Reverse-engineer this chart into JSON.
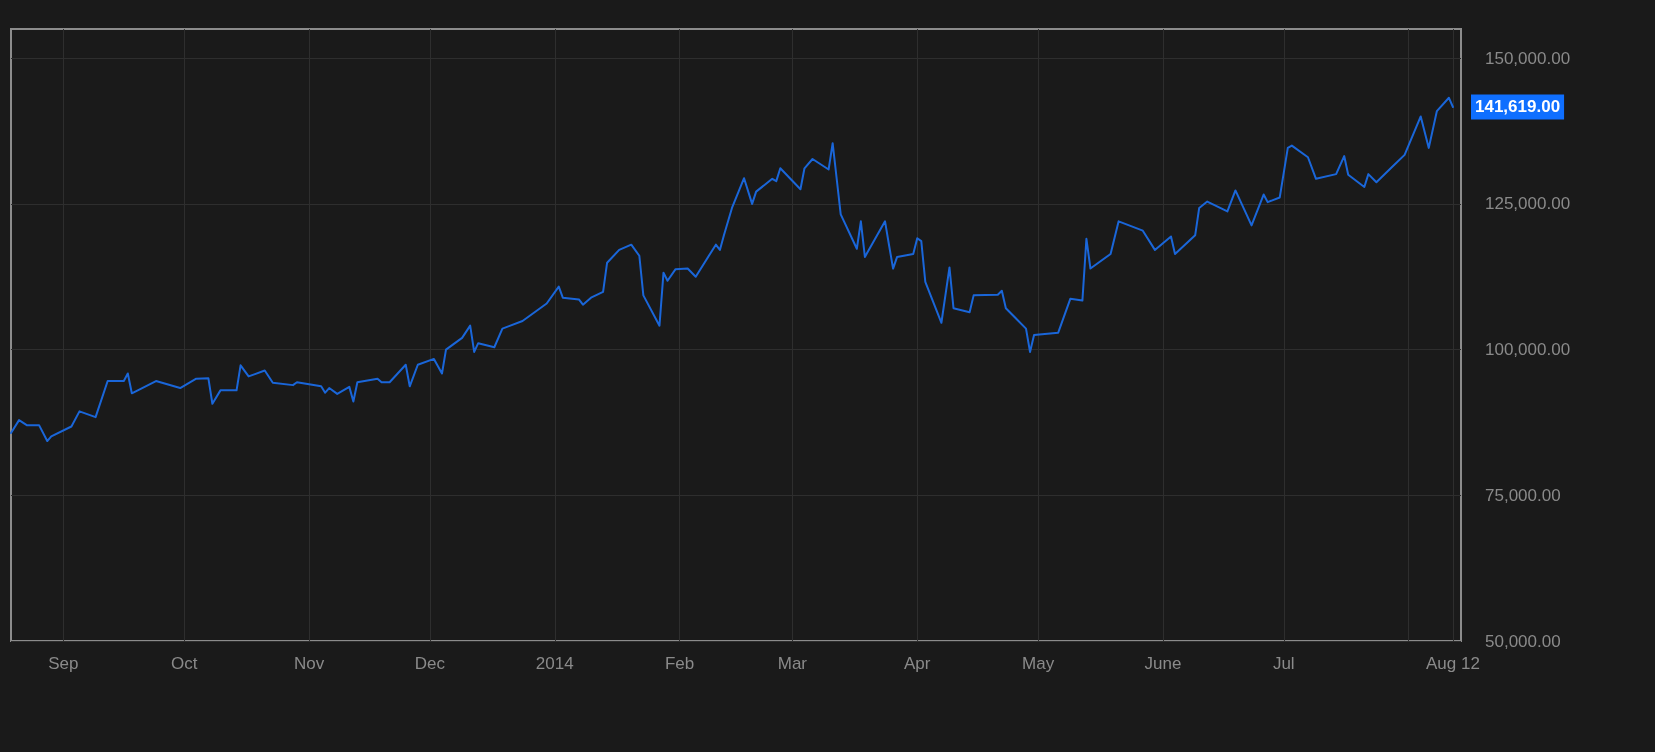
{
  "chart_data": {
    "type": "line",
    "x": [
      "2013-08-19",
      "2013-08-21",
      "2013-08-23",
      "2013-08-26",
      "2013-08-28",
      "2013-08-29",
      "2013-09-03",
      "2013-09-05",
      "2013-09-09",
      "2013-09-12",
      "2013-09-16",
      "2013-09-17",
      "2013-09-18",
      "2013-09-24",
      "2013-09-30",
      "2013-10-04",
      "2013-10-07",
      "2013-10-08",
      "2013-10-10",
      "2013-10-14",
      "2013-10-15",
      "2013-10-17",
      "2013-10-21",
      "2013-10-23",
      "2013-10-28",
      "2013-10-29",
      "2013-11-04",
      "2013-11-05",
      "2013-11-06",
      "2013-11-08",
      "2013-11-11",
      "2013-11-12",
      "2013-11-13",
      "2013-11-18",
      "2013-11-19",
      "2013-11-21",
      "2013-11-25",
      "2013-11-26",
      "2013-11-28",
      "2013-12-02",
      "2013-12-04",
      "2013-12-05",
      "2013-12-09",
      "2013-12-11",
      "2013-12-12",
      "2013-12-13",
      "2013-12-17",
      "2013-12-19",
      "2013-12-24",
      "2013-12-30",
      "2014-01-02",
      "2014-01-03",
      "2014-01-07",
      "2014-01-08",
      "2014-01-10",
      "2014-01-13",
      "2014-01-14",
      "2014-01-17",
      "2014-01-20",
      "2014-01-22",
      "2014-01-23",
      "2014-01-27",
      "2014-01-28",
      "2014-01-29",
      "2014-01-31",
      "2014-02-03",
      "2014-02-05",
      "2014-02-10",
      "2014-02-11",
      "2014-02-12",
      "2014-02-14",
      "2014-02-17",
      "2014-02-19",
      "2014-02-20",
      "2014-02-24",
      "2014-02-25",
      "2014-02-26",
      "2014-03-03",
      "2014-03-04",
      "2014-03-06",
      "2014-03-10",
      "2014-03-11",
      "2014-03-13",
      "2014-03-17",
      "2014-03-18",
      "2014-03-19",
      "2014-03-24",
      "2014-03-25",
      "2014-03-26",
      "2014-03-27",
      "2014-03-31",
      "2014-04-01",
      "2014-04-02",
      "2014-04-03",
      "2014-04-07",
      "2014-04-09",
      "2014-04-10",
      "2014-04-14",
      "2014-04-15",
      "2014-04-21",
      "2014-04-22",
      "2014-04-23",
      "2014-04-28",
      "2014-04-29",
      "2014-04-30",
      "2014-05-06",
      "2014-05-09",
      "2014-05-12",
      "2014-05-13",
      "2014-05-14",
      "2014-05-19",
      "2014-05-21",
      "2014-05-27",
      "2014-05-30",
      "2014-06-03",
      "2014-06-04",
      "2014-06-09",
      "2014-06-10",
      "2014-06-12",
      "2014-06-17",
      "2014-06-19",
      "2014-06-23",
      "2014-06-26",
      "2014-06-27",
      "2014-06-30",
      "2014-07-02",
      "2014-07-03",
      "2014-07-07",
      "2014-07-09",
      "2014-07-14",
      "2014-07-16",
      "2014-07-17",
      "2014-07-21",
      "2014-07-22",
      "2014-07-24",
      "2014-07-28",
      "2014-07-31",
      "2014-08-04",
      "2014-08-06",
      "2014-08-08",
      "2014-08-11",
      "2014-08-12"
    ],
    "series": [
      {
        "color": "#1a66d9",
        "values": [
          85700,
          87900,
          87000,
          87000,
          84300,
          85100,
          86800,
          89400,
          88400,
          94600,
          94600,
          95900,
          92500,
          94600,
          93400,
          95000,
          95100,
          90700,
          93000,
          93000,
          97300,
          95400,
          96400,
          94300,
          93900,
          94400,
          93700,
          92600,
          93400,
          92400,
          93600,
          91100,
          94400,
          95000,
          94400,
          94400,
          97400,
          93700,
          97400,
          98400,
          95900,
          100000,
          102000,
          104100,
          99600,
          101100,
          100400,
          103600,
          104900,
          107900,
          110800,
          108900,
          108600,
          107700,
          108900,
          109900,
          114900,
          117100,
          118000,
          116100,
          109300,
          104100,
          113200,
          111800,
          113800,
          113900,
          112500,
          118000,
          117100,
          119600,
          124300,
          129400,
          125000,
          127100,
          129300,
          128900,
          131100,
          127500,
          131100,
          132700,
          130900,
          135400,
          123200,
          117300,
          122000,
          115900,
          122000,
          117900,
          113900,
          115900,
          116400,
          119100,
          118600,
          111600,
          104600,
          114100,
          107100,
          106400,
          109300,
          109400,
          110100,
          107100,
          103600,
          99600,
          102500,
          102900,
          108700,
          108400,
          119000,
          113900,
          116400,
          122000,
          120400,
          117100,
          119400,
          116400,
          119600,
          124300,
          125400,
          123700,
          127300,
          121300,
          126600,
          125300,
          126100,
          134600,
          135000,
          133000,
          129300,
          130100,
          133200,
          130000,
          127900,
          130100,
          128700,
          131400,
          133400,
          140000,
          134600,
          140900,
          143200,
          141619
        ]
      }
    ],
    "xlim": [
      "2013-08-19",
      "2014-08-14"
    ],
    "xticks": [
      {
        "value": "2013-09-01",
        "label": "Sep"
      },
      {
        "value": "2013-10-01",
        "label": "Oct"
      },
      {
        "value": "2013-11-01",
        "label": "Nov"
      },
      {
        "value": "2013-12-01",
        "label": "Dec"
      },
      {
        "value": "2014-01-01",
        "label": "2014"
      },
      {
        "value": "2014-02-01",
        "label": "Feb"
      },
      {
        "value": "2014-03-01",
        "label": "Mar"
      },
      {
        "value": "2014-04-01",
        "label": "Apr"
      },
      {
        "value": "2014-05-01",
        "label": "May"
      },
      {
        "value": "2014-06-01",
        "label": "June"
      },
      {
        "value": "2014-07-01",
        "label": "Jul"
      },
      {
        "value": "2014-08-01",
        "label": null
      },
      {
        "value": "2014-08-12",
        "label": "Aug 12"
      }
    ],
    "ylim": [
      50000,
      155000
    ],
    "yticks": [
      {
        "value": 50000,
        "label": "50,000.00"
      },
      {
        "value": 75000,
        "label": "75,000.00"
      },
      {
        "value": 100000,
        "label": "100,000.00"
      },
      {
        "value": 125000,
        "label": "125,000.00"
      },
      {
        "value": 150000,
        "label": "150,000.00"
      }
    ],
    "annotations": [
      {
        "text": "141,619.00",
        "x": "2014-08-12",
        "y": 141619
      }
    ],
    "grid": true
  }
}
